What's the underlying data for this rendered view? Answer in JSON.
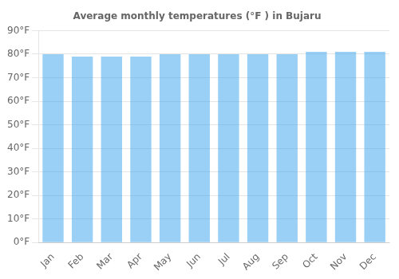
{
  "chart_data": {
    "type": "bar",
    "title": "Average monthly temperatures (°F ) in Bujaru",
    "categories": [
      "Jan",
      "Feb",
      "Mar",
      "Apr",
      "May",
      "Jun",
      "Jul",
      "Aug",
      "Sep",
      "Oct",
      "Nov",
      "Dec"
    ],
    "values": [
      80,
      79,
      79,
      79,
      80,
      80,
      80,
      80,
      80,
      81,
      81,
      81
    ],
    "ylim": [
      0,
      90
    ],
    "yticks": [
      {
        "value": 0,
        "label": "0°F"
      },
      {
        "value": 10,
        "label": "10°F"
      },
      {
        "value": 20,
        "label": "20°F"
      },
      {
        "value": 30,
        "label": "30°F"
      },
      {
        "value": 40,
        "label": "40°F"
      },
      {
        "value": 50,
        "label": "50°F"
      },
      {
        "value": 60,
        "label": "60°F"
      },
      {
        "value": 70,
        "label": "70°F"
      },
      {
        "value": 80,
        "label": "80°F"
      },
      {
        "value": 90,
        "label": "90°F"
      }
    ],
    "grid": true
  }
}
